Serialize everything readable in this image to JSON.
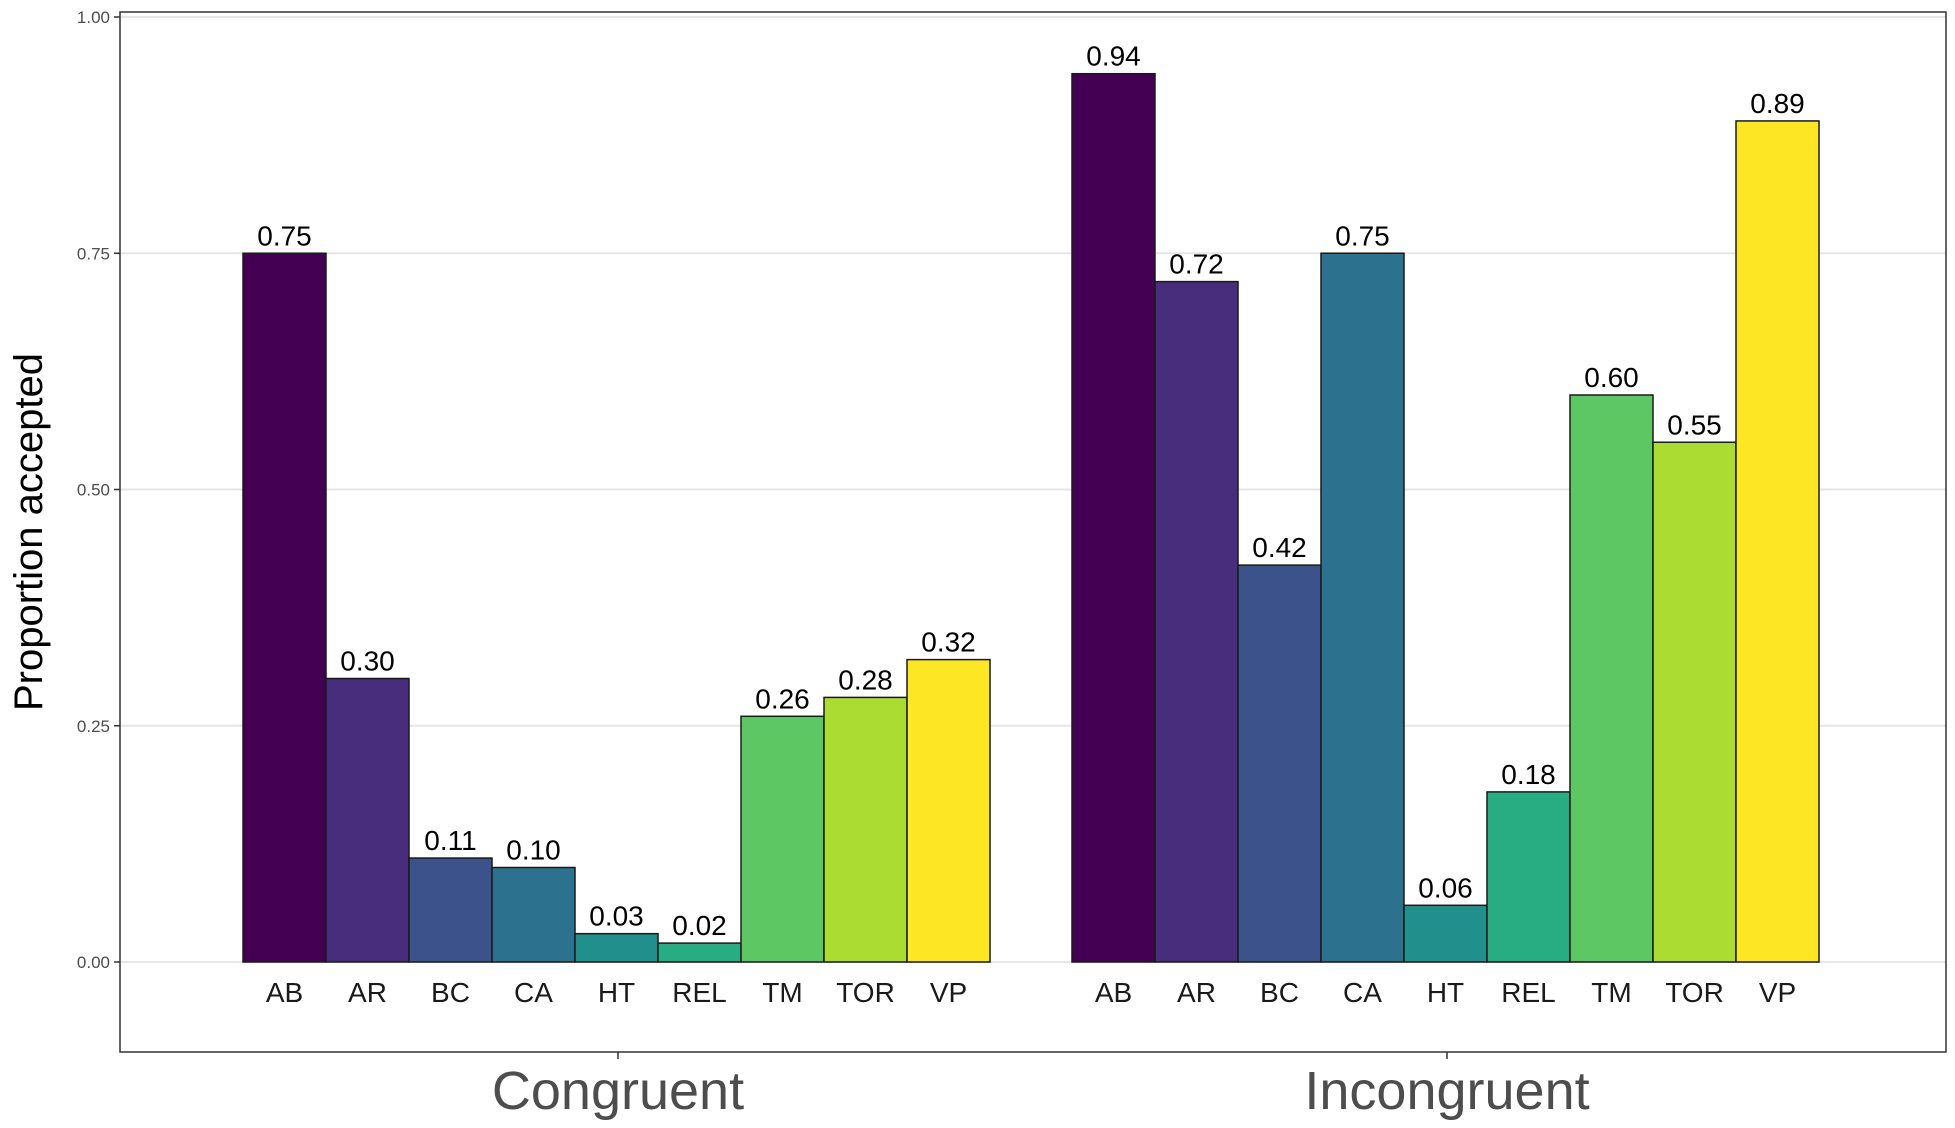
{
  "chart_data": {
    "type": "bar",
    "ylabel": "Proportion accepted",
    "xlabel": "",
    "ylim": [
      -0.1,
      1.0
    ],
    "yticks": [
      "0.00",
      "0.25",
      "0.50",
      "0.75",
      "1.00"
    ],
    "grid": true,
    "legend": "none",
    "colors": [
      "#440154",
      "#472D7B",
      "#3B528B",
      "#2C728E",
      "#21908C",
      "#27AD81",
      "#5DC863",
      "#AADC32",
      "#FDE725"
    ],
    "groups": [
      {
        "name": "Congruent",
        "categories": [
          "AB",
          "AR",
          "BC",
          "CA",
          "HT",
          "REL",
          "TM",
          "TOR",
          "VP"
        ],
        "values": [
          0.75,
          0.3,
          0.11,
          0.1,
          0.03,
          0.02,
          0.26,
          0.28,
          0.32
        ],
        "labels": [
          "0.75",
          "0.30",
          "0.11",
          "0.10",
          "0.03",
          "0.02",
          "0.26",
          "0.28",
          "0.32"
        ]
      },
      {
        "name": "Incongruent",
        "categories": [
          "AB",
          "AR",
          "BC",
          "CA",
          "HT",
          "REL",
          "TM",
          "TOR",
          "VP"
        ],
        "values": [
          0.94,
          0.72,
          0.42,
          0.75,
          0.06,
          0.18,
          0.6,
          0.55,
          0.89
        ],
        "labels": [
          "0.94",
          "0.72",
          "0.42",
          "0.75",
          "0.06",
          "0.18",
          "0.60",
          "0.55",
          "0.89"
        ]
      }
    ]
  }
}
